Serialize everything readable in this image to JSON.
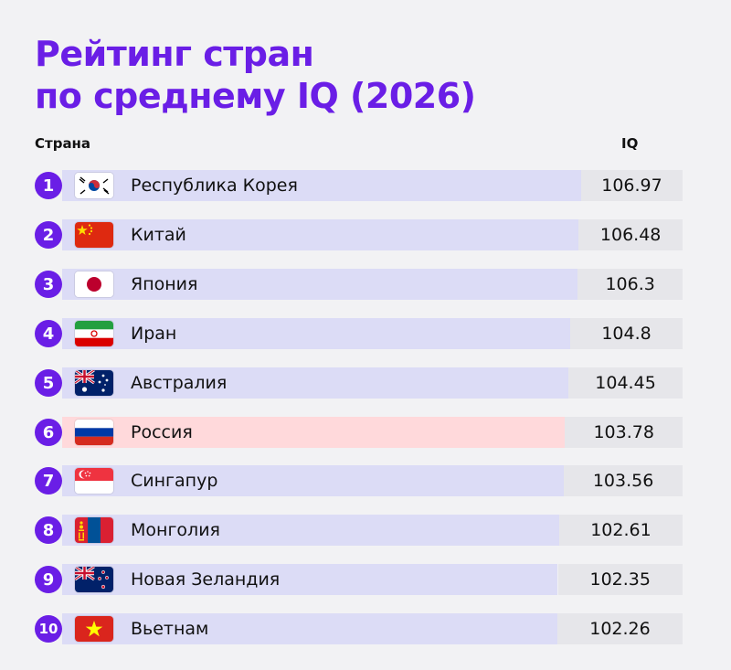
{
  "header": {
    "title_line1": "Рейтинг стран",
    "title_line2": "по среднему IQ (2026)",
    "col_country": "Страна",
    "col_iq": "IQ"
  },
  "colors": {
    "accent": "#6a1ee6",
    "bar": "#dcdcf6",
    "bar_highlight": "#ffd9db",
    "value_cell": "#e6e6ea"
  },
  "chart_data": {
    "type": "bar",
    "orientation": "horizontal",
    "title": "Рейтинг стран по среднему IQ (2026)",
    "xlabel": "IQ",
    "ylabel": "Страна",
    "categories": [
      "Республика Корея",
      "Китай",
      "Япония",
      "Иран",
      "Австралия",
      "Россия",
      "Сингапур",
      "Монголия",
      "Новая Зеландия",
      "Вьетнам"
    ],
    "values": [
      106.97,
      106.48,
      106.3,
      104.8,
      104.45,
      103.78,
      103.56,
      102.61,
      102.35,
      102.26
    ],
    "value_labels": [
      "106.97",
      "106.48",
      "106.3",
      "104.8",
      "104.45",
      "103.78",
      "103.56",
      "102.61",
      "102.35",
      "102.26"
    ],
    "ranks": [
      "1",
      "2",
      "3",
      "4",
      "5",
      "6",
      "7",
      "8",
      "9",
      "10"
    ],
    "flags": [
      "kr-flag-icon",
      "cn-flag-icon",
      "jp-flag-icon",
      "ir-flag-icon",
      "au-flag-icon",
      "ru-flag-icon",
      "sg-flag-icon",
      "mn-flag-icon",
      "nz-flag-icon",
      "vn-flag-icon"
    ],
    "highlighted_category": "Россия",
    "grid": false,
    "legend": "none"
  }
}
